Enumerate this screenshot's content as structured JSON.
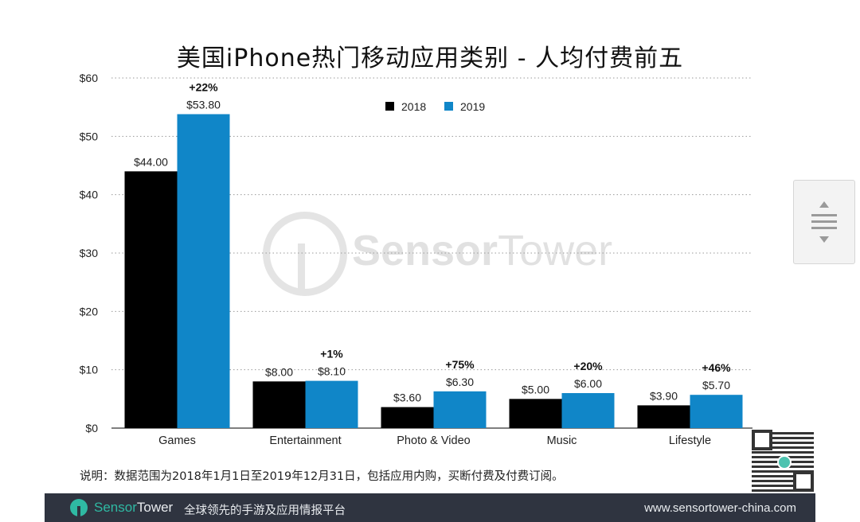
{
  "chart_data": {
    "type": "bar",
    "title": "美国iPhone热门移动应用类别 - 人均付费前五",
    "categories": [
      "Games",
      "Entertainment",
      "Photo & Video",
      "Music",
      "Lifestyle"
    ],
    "series": [
      {
        "name": "2018",
        "color": "#000000",
        "values": [
          44.0,
          8.0,
          3.6,
          5.0,
          3.9
        ],
        "labels": [
          "$44.00",
          "$8.00",
          "$3.60",
          "$5.00",
          "$3.90"
        ]
      },
      {
        "name": "2019",
        "color": "#1086c8",
        "values": [
          53.8,
          8.1,
          6.3,
          6.0,
          5.7
        ],
        "labels": [
          "$53.80",
          "$8.10",
          "$6.30",
          "$6.00",
          "$5.70"
        ]
      }
    ],
    "growth_labels": [
      "+22%",
      "+1%",
      "+75%",
      "+20%",
      "+46%"
    ],
    "ylim": [
      0,
      60
    ],
    "yticks": [
      0,
      10,
      20,
      30,
      40,
      50,
      60
    ],
    "ytick_labels": [
      "$0",
      "$10",
      "$20",
      "$30",
      "$40",
      "$50",
      "$60"
    ],
    "grid": true,
    "legend_position": "top-center"
  },
  "note": "说明：数据范围为2018年1月1日至2019年12月31日，包括应用内购，买断付费及付费订阅。",
  "watermark": {
    "brand_bold": "Sensor",
    "brand_light": "Tower"
  },
  "footer": {
    "brand_bold": "Sensor",
    "brand_light": "Tower",
    "slogan": "全球领先的手游及应用情报平台",
    "url": "www.sensortower-china.com"
  },
  "icons": {
    "qr": "qr-code-icon",
    "scroll": "scroll-arrows-icon"
  }
}
